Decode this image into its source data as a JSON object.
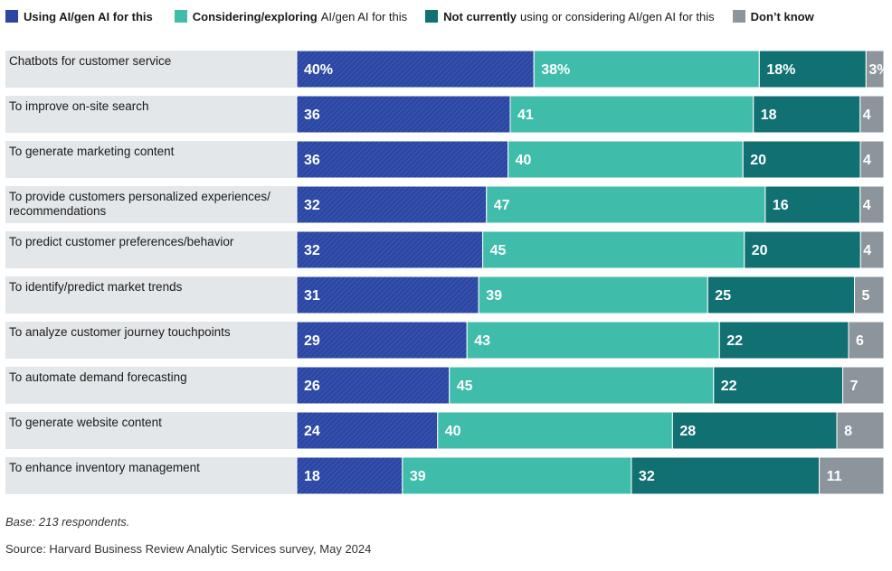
{
  "chart_data": {
    "type": "bar",
    "orientation": "horizontal",
    "stacked": true,
    "categories": [
      "Chatbots for customer service",
      "To improve on-site search",
      "To generate marketing content",
      "To provide customers personalized experiences/ recommendations",
      "To predict customer preferences/behavior",
      "To identify/predict market trends",
      "To analyze customer journey touchpoints",
      "To automate demand forecasting",
      "To generate website content",
      "To enhance inventory management"
    ],
    "category_lines": [
      [
        "Chatbots for customer service"
      ],
      [
        "To improve on-site search"
      ],
      [
        "To generate marketing content"
      ],
      [
        "To provide customers personalized experiences/",
        "recommendations"
      ],
      [
        "To predict customer preferences/behavior"
      ],
      [
        "To identify/predict market trends"
      ],
      [
        "To analyze customer journey touchpoints"
      ],
      [
        "To automate demand forecasting"
      ],
      [
        "To generate website content"
      ],
      [
        "To enhance inventory management"
      ]
    ],
    "series": [
      {
        "name": "Using AI/gen AI for this",
        "bold": "Using AI/gen AI for this",
        "rest": "",
        "color": "#2b47a3",
        "hatched": true,
        "values": [
          40,
          36,
          36,
          32,
          32,
          31,
          29,
          26,
          24,
          18
        ]
      },
      {
        "name": "Considering/exploring AI/gen AI for this",
        "bold": "Considering/exploring",
        "rest": "AI/gen AI for this",
        "color": "#3fbdaa",
        "hatched": false,
        "values": [
          38,
          41,
          40,
          47,
          45,
          39,
          43,
          45,
          40,
          39
        ]
      },
      {
        "name": "Not currently using or considering AI/gen AI for this",
        "bold": "Not currently",
        "rest": "using or considering AI/gen AI for this",
        "color": "#117071",
        "hatched": false,
        "values": [
          18,
          18,
          20,
          16,
          20,
          25,
          22,
          22,
          28,
          32
        ]
      },
      {
        "name": "Don't know",
        "bold": "Don’t know",
        "rest": "",
        "color": "#8c959c",
        "hatched": false,
        "values": [
          3,
          4,
          4,
          4,
          4,
          5,
          6,
          7,
          8,
          11
        ]
      }
    ],
    "first_row_labels": [
      "40%",
      "38%",
      "18%",
      "3%"
    ],
    "xlim": [
      0,
      100
    ],
    "legend_position": "top-left"
  },
  "footer": {
    "base": "Base: 213 respondents.",
    "source": "Source: Harvard Business Review Analytic Services survey, May 2024"
  }
}
